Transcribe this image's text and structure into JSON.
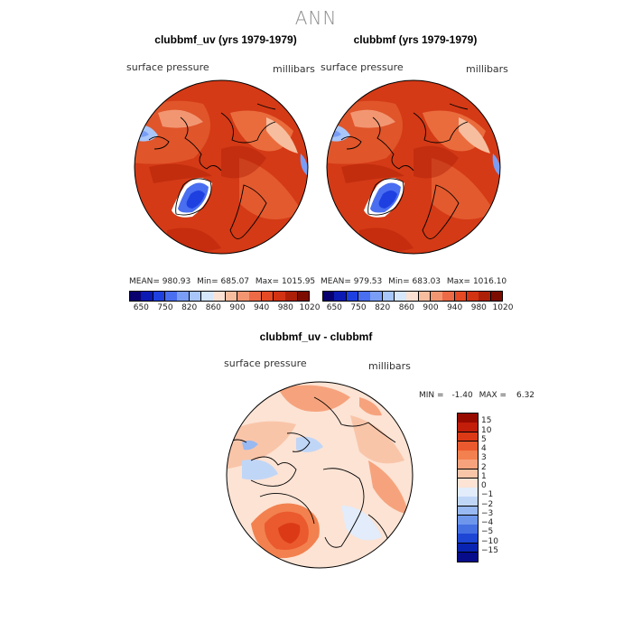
{
  "header": {
    "title": "ANN"
  },
  "panels": [
    {
      "title": "clubbmf_uv (yrs 1979-1979)",
      "variable": "surface pressure",
      "units": "millibars",
      "mean_label": "MEAN=",
      "mean": "980.93",
      "min_label": "Min=",
      "min": "685.07",
      "max_label": "Max=",
      "max": "1015.95"
    },
    {
      "title": "clubbmf (yrs 1979-1979)",
      "variable": "surface pressure",
      "units": "millibars",
      "mean_label": "MEAN=",
      "mean": "979.53",
      "min_label": "Min=",
      "min": "683.03",
      "max_label": "Max=",
      "max": "1016.10"
    }
  ],
  "top_colorbar": {
    "colors": [
      "#08006e",
      "#0c1ab4",
      "#1f40e0",
      "#4a6ef0",
      "#7a9ef5",
      "#a8c6fa",
      "#d6e6fb",
      "#fbe1d3",
      "#f7bd9f",
      "#f29672",
      "#ec6a45",
      "#e54a24",
      "#d23313",
      "#ad2008",
      "#7d0c00"
    ],
    "tick_labels": [
      "650",
      "750",
      "820",
      "860",
      "900",
      "940",
      "980",
      "1020"
    ]
  },
  "diff_panel": {
    "title": "clubbmf_uv - clubbmf",
    "variable": "surface pressure",
    "units": "millibars",
    "min_label": "MIN =",
    "min": "-1.40",
    "max_label": "MAX =",
    "max": "6.32"
  },
  "diff_colorbar": {
    "colors_top_to_bottom": [
      "#960a00",
      "#c21e0a",
      "#dc3a17",
      "#ea5a2e",
      "#f2814f",
      "#f6a37d",
      "#f9c5a9",
      "#fce3d4",
      "#e2ecfa",
      "#c0d6f7",
      "#98b9f2",
      "#6e97ec",
      "#4570e2",
      "#1e46d4",
      "#0a24b2",
      "#060c8a"
    ],
    "tick_labels": [
      "15",
      "10",
      "5",
      "4",
      "3",
      "2",
      "1",
      "0",
      "−1",
      "−2",
      "−3",
      "−4",
      "−5",
      "−10",
      "−15"
    ]
  }
}
